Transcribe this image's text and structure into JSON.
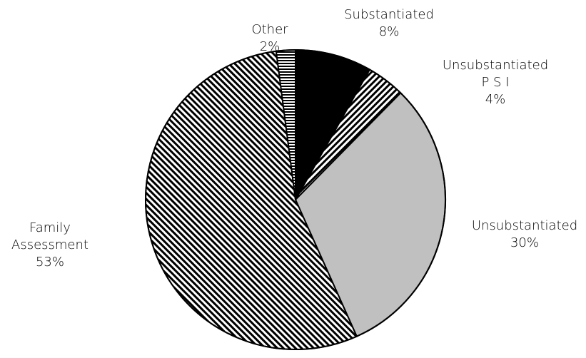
{
  "chart_data": {
    "type": "pie",
    "start_angle_deg": 90,
    "direction": "clockwise",
    "slices": [
      {
        "name": "Substantiated",
        "label_lines": [
          "Substantiated"
        ],
        "value": 8,
        "value_label": "8%",
        "fill": "#000000",
        "pattern": "solid"
      },
      {
        "name": "Unsubstantiated P S I",
        "label_lines": [
          "Unsubstantiated",
          "P S I"
        ],
        "value": 4,
        "value_label": "4%",
        "fill": "#ffffff",
        "pattern": "diagonal-stripes-up"
      },
      {
        "name": "Unsubstantiated",
        "label_lines": [
          "Unsubstantiated"
        ],
        "value": 30,
        "value_label": "30%",
        "fill": "#c0c0c0",
        "pattern": "solid"
      },
      {
        "name": "Family Assessment",
        "label_lines": [
          "Family",
          "Assessment"
        ],
        "value": 53,
        "value_label": "53%",
        "fill": "#ffffff",
        "pattern": "diagonal-stripes-down"
      },
      {
        "name": "Other",
        "label_lines": [
          "Other"
        ],
        "value": 2,
        "value_label": "2%",
        "fill": "#ffffff",
        "pattern": "horizontal-stripes"
      }
    ]
  }
}
